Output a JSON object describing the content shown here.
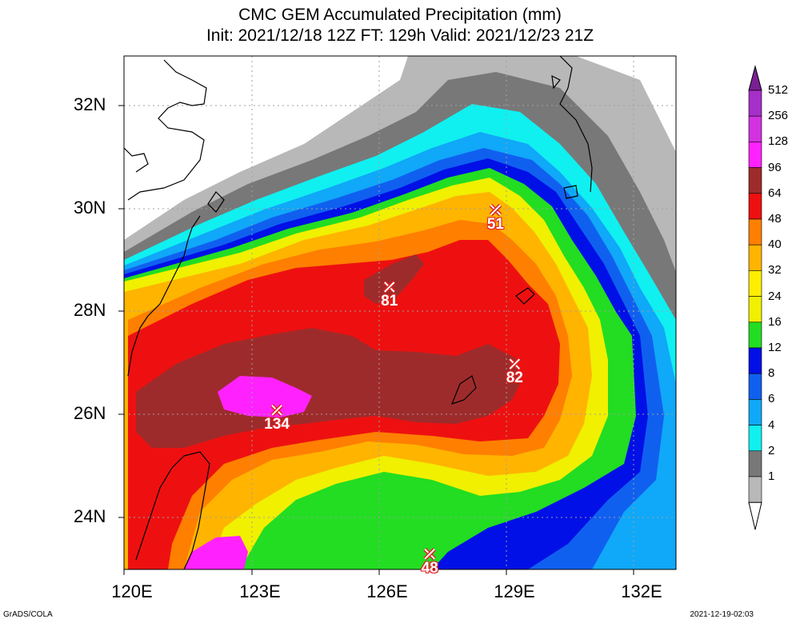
{
  "title": {
    "line1": "CMC GEM Accumulated Precipitation (mm)",
    "line2": "Init: 2021/12/18 12Z  FT: 129h  Valid: 2021/12/23 21Z"
  },
  "axes": {
    "lat_labels": [
      "32N",
      "30N",
      "28N",
      "26N",
      "24N"
    ],
    "lon_labels": [
      "120E",
      "123E",
      "126E",
      "129E",
      "132E"
    ]
  },
  "legend": {
    "levels": [
      "512",
      "256",
      "128",
      "96",
      "64",
      "48",
      "40",
      "32",
      "24",
      "16",
      "12",
      "8",
      "6",
      "4",
      "2",
      "1"
    ],
    "colors": [
      "#7a1f96",
      "#a52fc8",
      "#d232e0",
      "#ff22ff",
      "#9e2b2b",
      "#ee1010",
      "#ff7f00",
      "#ffb400",
      "#ffee00",
      "#f0f000",
      "#22dd22",
      "#0010e6",
      "#1060f0",
      "#10a8f8",
      "#10f0f0",
      "#787878",
      "#b8b8b8",
      "#ffffff"
    ]
  },
  "maxima": [
    {
      "value": "51",
      "lon": 128.75,
      "lat": 30.0
    },
    {
      "value": "81",
      "lon": 126.25,
      "lat": 28.5
    },
    {
      "value": "82",
      "lon": 129.2,
      "lat": 27.0
    },
    {
      "value": "134",
      "lon": 123.6,
      "lat": 26.1
    },
    {
      "value": "48",
      "lon": 127.2,
      "lat": 23.3
    }
  ],
  "footer": {
    "left": "GrADS/COLA",
    "right": "2021-12-19-02:03"
  }
}
